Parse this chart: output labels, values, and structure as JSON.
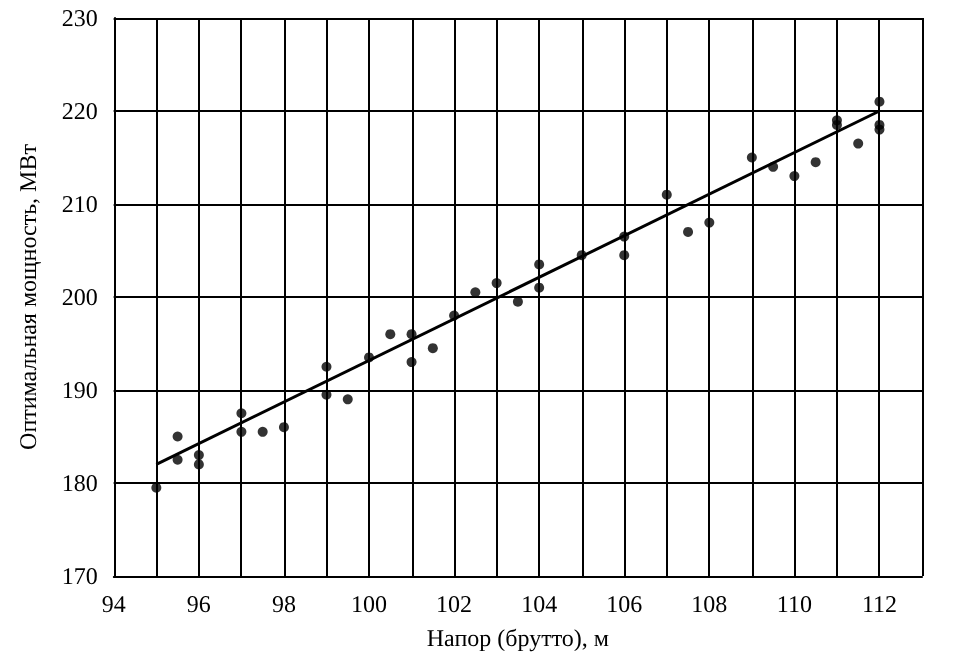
{
  "chart_data": {
    "type": "scatter",
    "xlabel": "Напор (брутто), м",
    "ylabel": "Оптимальная мощность, МВт",
    "xlim": [
      94,
      113
    ],
    "xticks": [
      94,
      {
        "value": 95,
        "label": null
      },
      96,
      {
        "value": 97,
        "label": null
      },
      98,
      {
        "value": 99,
        "label": null
      },
      100,
      {
        "value": 101,
        "label": null
      },
      102,
      {
        "value": 103,
        "label": null
      },
      104,
      {
        "value": 105,
        "label": null
      },
      106,
      {
        "value": 107,
        "label": null
      },
      108,
      {
        "value": 109,
        "label": null
      },
      110,
      {
        "value": 111,
        "label": null
      },
      112,
      {
        "value": 113,
        "label": null
      }
    ],
    "ylim": [
      170,
      230
    ],
    "yticks": [
      170,
      180,
      190,
      200,
      210,
      220,
      230
    ],
    "grid": true,
    "series": [
      {
        "color": "#000000",
        "marker": "circle",
        "x": [
          95,
          95.5,
          95.5,
          96,
          96,
          97,
          97,
          97.5,
          98,
          99,
          99,
          99.5,
          100,
          100.5,
          101,
          101,
          101.5,
          102,
          102.5,
          103,
          103.5,
          104,
          104,
          105,
          106,
          106,
          107,
          107.5,
          108,
          109,
          109.5,
          110,
          110.5,
          111,
          111,
          111.5,
          112,
          112,
          112
        ],
        "values": [
          179.5,
          182.5,
          185,
          183,
          182,
          187.5,
          185.5,
          185.5,
          186,
          192.5,
          189.5,
          189,
          193.5,
          196,
          196,
          193,
          194.5,
          198,
          200.5,
          201.5,
          199.5,
          203.5,
          201,
          204.5,
          206.5,
          204.5,
          211,
          207,
          208,
          215,
          214,
          213,
          214.5,
          219,
          218.5,
          216.5,
          221,
          218.5,
          218
        ]
      },
      {
        "type": "line",
        "color": "#000000",
        "x": [
          95,
          112
        ],
        "values": [
          182,
          220
        ]
      }
    ]
  }
}
